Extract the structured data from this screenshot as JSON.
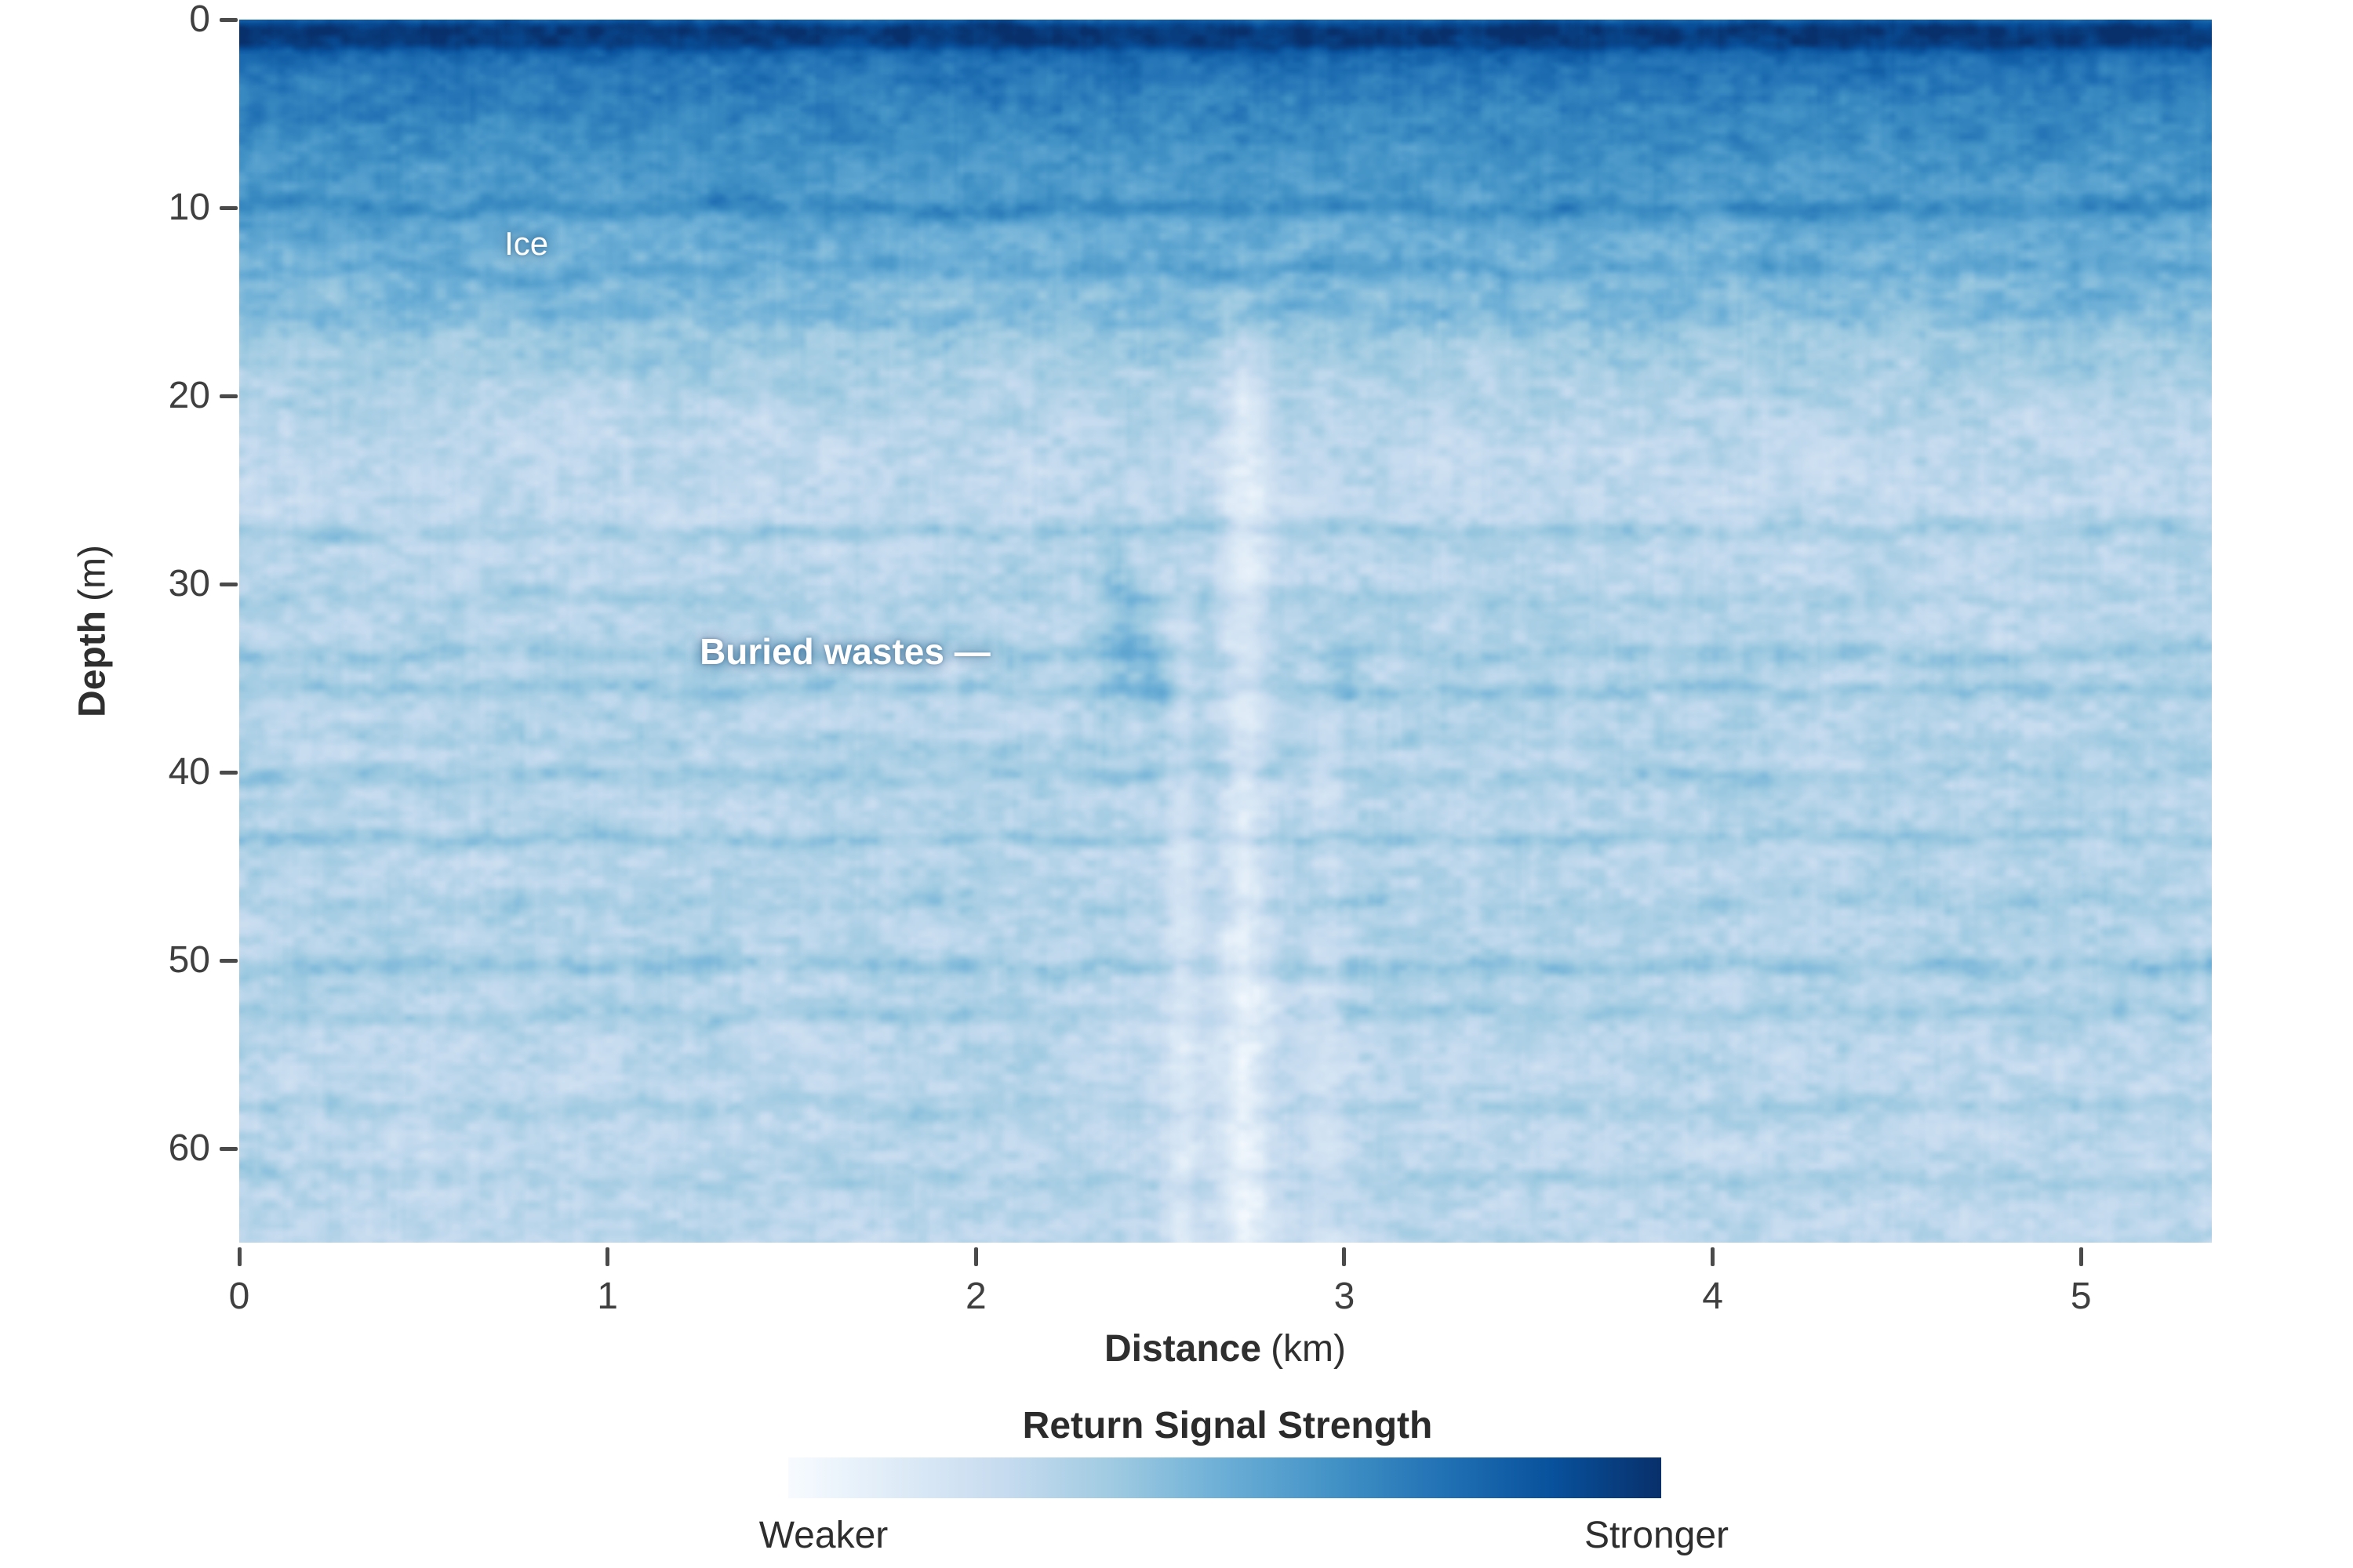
{
  "figure": {
    "background": "#ffffff"
  },
  "chart_data": {
    "type": "heatmap",
    "title": "",
    "xlabel_bold": "Distance",
    "xlabel_unit": "(km)",
    "ylabel_bold": "Depth",
    "ylabel_unit": "(m)",
    "x_range": [
      0,
      5.355
    ],
    "y_range": [
      0,
      65
    ],
    "x_ticks": [
      "0",
      "1",
      "2",
      "3",
      "4",
      "5"
    ],
    "y_ticks": [
      "0",
      "10",
      "20",
      "30",
      "40",
      "50",
      "60"
    ],
    "grid": false,
    "legend": {
      "title": "Return Signal Strength",
      "min_label": "Weaker",
      "max_label": "Stronger",
      "position": "bottom"
    },
    "annotations": [
      {
        "id": "ice",
        "text": "Ice",
        "x_km": 0.72,
        "depth_m": 11.9,
        "bold": false,
        "size": 42
      },
      {
        "id": "buried-wastes",
        "text": "Buried wastes —",
        "x_km": 1.25,
        "depth_m": 33.6,
        "bold": true,
        "size": 46
      }
    ],
    "colormap": {
      "name": "Blues",
      "stops": [
        {
          "t": 0.0,
          "c": "#f7fbff"
        },
        {
          "t": 0.125,
          "c": "#deebf7"
        },
        {
          "t": 0.25,
          "c": "#c6dbef"
        },
        {
          "t": 0.375,
          "c": "#9ecae1"
        },
        {
          "t": 0.5,
          "c": "#6baed6"
        },
        {
          "t": 0.625,
          "c": "#4292c6"
        },
        {
          "t": 0.75,
          "c": "#2171b5"
        },
        {
          "t": 0.875,
          "c": "#08519c"
        },
        {
          "t": 1.0,
          "c": "#08306b"
        }
      ]
    },
    "field_model": {
      "seed": 1337,
      "noise_amp": 0.13,
      "noise_octaves": [
        {
          "cx": 5,
          "cy": 3.2,
          "a": 1.0
        },
        {
          "cx": 10,
          "cy": 6,
          "a": 0.55
        },
        {
          "cx": 2.6,
          "cy": 1.8,
          "a": 0.4
        },
        {
          "cx": 28,
          "cy": 10,
          "a": 0.5
        },
        {
          "cx": 1.6,
          "cy": 26,
          "a": 0.25
        }
      ],
      "depth_profile": [
        [
          0,
          0.8
        ],
        [
          0.3,
          0.93
        ],
        [
          0.6,
          0.97
        ],
        [
          1.3,
          0.95
        ],
        [
          1.8,
          0.8
        ],
        [
          2.5,
          0.74
        ],
        [
          4,
          0.7
        ],
        [
          6,
          0.66
        ],
        [
          8,
          0.6
        ],
        [
          10,
          0.55
        ],
        [
          12,
          0.5
        ],
        [
          14,
          0.45
        ],
        [
          16,
          0.4
        ],
        [
          18,
          0.36
        ],
        [
          20,
          0.32
        ],
        [
          22,
          0.285
        ],
        [
          25,
          0.27
        ],
        [
          28,
          0.285
        ],
        [
          32,
          0.3
        ],
        [
          36,
          0.3
        ],
        [
          40,
          0.295
        ],
        [
          45,
          0.3
        ],
        [
          50,
          0.3
        ],
        [
          55,
          0.29
        ],
        [
          60,
          0.285
        ],
        [
          65,
          0.28
        ]
      ],
      "layers": [
        {
          "depth_m": 10.0,
          "width_m": 0.55,
          "amp": 0.1,
          "wavy_m": 0.5
        },
        {
          "depth_m": 13.3,
          "width_m": 0.5,
          "amp": 0.07,
          "wavy_m": 0.6
        },
        {
          "depth_m": 15.6,
          "width_m": 0.8,
          "amp": 0.05,
          "wavy_m": 0.8
        },
        {
          "depth_m": 27.2,
          "width_m": 0.5,
          "amp": 0.085,
          "wavy_m": 0.5
        },
        {
          "depth_m": 30.8,
          "width_m": 0.45,
          "amp": 0.05,
          "wavy_m": 0.5
        },
        {
          "depth_m": 33.8,
          "width_m": 0.55,
          "amp": 0.085,
          "wavy_m": 0.5
        },
        {
          "depth_m": 35.6,
          "width_m": 0.5,
          "amp": 0.09,
          "wavy_m": 0.4
        },
        {
          "depth_m": 38.5,
          "width_m": 0.5,
          "amp": 0.05,
          "wavy_m": 0.6
        },
        {
          "depth_m": 40.2,
          "width_m": 0.5,
          "amp": 0.075,
          "wavy_m": 0.5
        },
        {
          "depth_m": 43.5,
          "width_m": 0.45,
          "amp": 0.095,
          "wavy_m": 0.4
        },
        {
          "depth_m": 47.0,
          "width_m": 0.5,
          "amp": 0.05,
          "wavy_m": 0.6
        },
        {
          "depth_m": 50.4,
          "width_m": 0.55,
          "amp": 0.1,
          "wavy_m": 0.4
        },
        {
          "depth_m": 52.8,
          "width_m": 0.5,
          "amp": 0.07,
          "wavy_m": 0.5
        },
        {
          "depth_m": 57.8,
          "width_m": 0.5,
          "amp": 0.06,
          "wavy_m": 0.6
        },
        {
          "depth_m": 61.5,
          "width_m": 0.5,
          "amp": 0.05,
          "wavy_m": 0.6
        }
      ],
      "bright_columns": [
        {
          "x_km": 2.73,
          "sigma_km": 0.065,
          "strength": 0.16,
          "start_m": 13,
          "ramp_m": 8
        },
        {
          "x_km": 2.56,
          "sigma_km": 0.045,
          "strength": 0.1,
          "start_m": 28,
          "ramp_m": 8
        },
        {
          "x_km": 2.95,
          "sigma_km": 0.05,
          "strength": 0.07,
          "start_m": 30,
          "ramp_m": 10
        },
        {
          "x_km": 2.67,
          "sigma_km": 0.22,
          "strength": 0.055,
          "start_m": 42,
          "ramp_m": 10
        }
      ],
      "strong_reflectors": [
        {
          "x_km": 2.41,
          "depth_m": 33.0,
          "sx_km": 0.07,
          "sd_m": 2.8,
          "amp": 0.16
        },
        {
          "x_km": 2.5,
          "depth_m": 35.5,
          "sx_km": 0.05,
          "sd_m": 2.0,
          "amp": 0.12
        },
        {
          "x_km": 2.38,
          "depth_m": 29.5,
          "sx_km": 0.04,
          "sd_m": 1.5,
          "amp": 0.1
        },
        {
          "x_km": 2.98,
          "depth_m": 35.0,
          "sx_km": 0.06,
          "sd_m": 2.2,
          "amp": 0.1
        },
        {
          "x_km": 2.62,
          "depth_m": 31.5,
          "sx_km": 0.03,
          "sd_m": 1.5,
          "amp": 0.08
        }
      ]
    }
  }
}
